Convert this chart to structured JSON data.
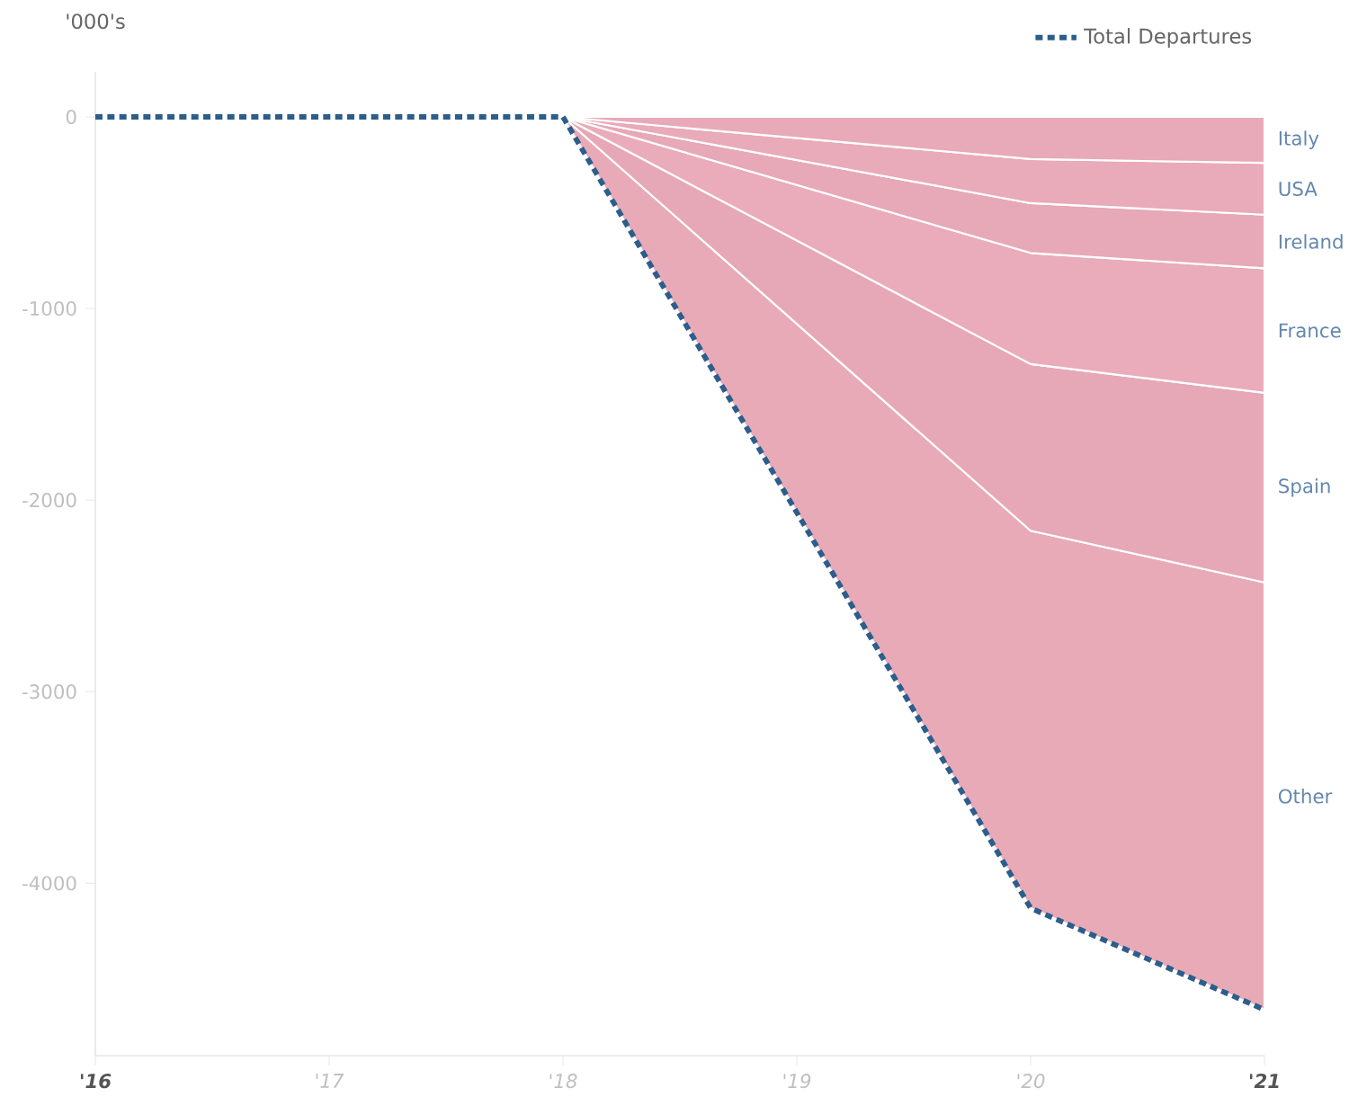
{
  "chart_data": {
    "type": "area",
    "stacked": true,
    "ylabel": "'000's",
    "xlim": [
      2016,
      2021
    ],
    "ylim": [
      -4900,
      235
    ],
    "xticks": [
      {
        "value": 2016,
        "label": "'16"
      },
      {
        "value": 2017,
        "label": "'17"
      },
      {
        "value": 2018,
        "label": "'18"
      },
      {
        "value": 2019,
        "label": "'19"
      },
      {
        "value": 2020,
        "label": "'20"
      },
      {
        "value": 2021,
        "label": "'21"
      }
    ],
    "yticks": [
      0,
      -1000,
      -2000,
      -3000,
      -4000
    ],
    "legend": "top right",
    "grid": false,
    "series": [
      {
        "name": "Italy",
        "color": "#e8a9b8",
        "x": [
          2018,
          2020,
          2021
        ],
        "values": [
          0,
          -220,
          -240
        ]
      },
      {
        "name": "USA",
        "color": "#e9aab9",
        "x": [
          2018,
          2020,
          2021
        ],
        "values": [
          0,
          -230,
          -270
        ]
      },
      {
        "name": "Ireland",
        "color": "#e7a8b7",
        "x": [
          2018,
          2020,
          2021
        ],
        "values": [
          0,
          -260,
          -280
        ]
      },
      {
        "name": "France",
        "color": "#eaabba",
        "x": [
          2018,
          2020,
          2021
        ],
        "values": [
          0,
          -580,
          -650
        ]
      },
      {
        "name": "Spain",
        "color": "#e6a7b6",
        "x": [
          2018,
          2020,
          2021
        ],
        "values": [
          0,
          -870,
          -990
        ]
      },
      {
        "name": "Other",
        "color": "#e8aab7",
        "x": [
          2018,
          2020,
          2021
        ],
        "values": [
          0,
          -1970,
          -2230
        ]
      },
      {
        "name": "Total Departures",
        "type": "line",
        "line_style": "dashed",
        "color": "#2c5e8c",
        "x": [
          2016,
          2018,
          2020,
          2021
        ],
        "values": [
          0,
          0,
          -4130,
          -4660
        ]
      }
    ]
  }
}
